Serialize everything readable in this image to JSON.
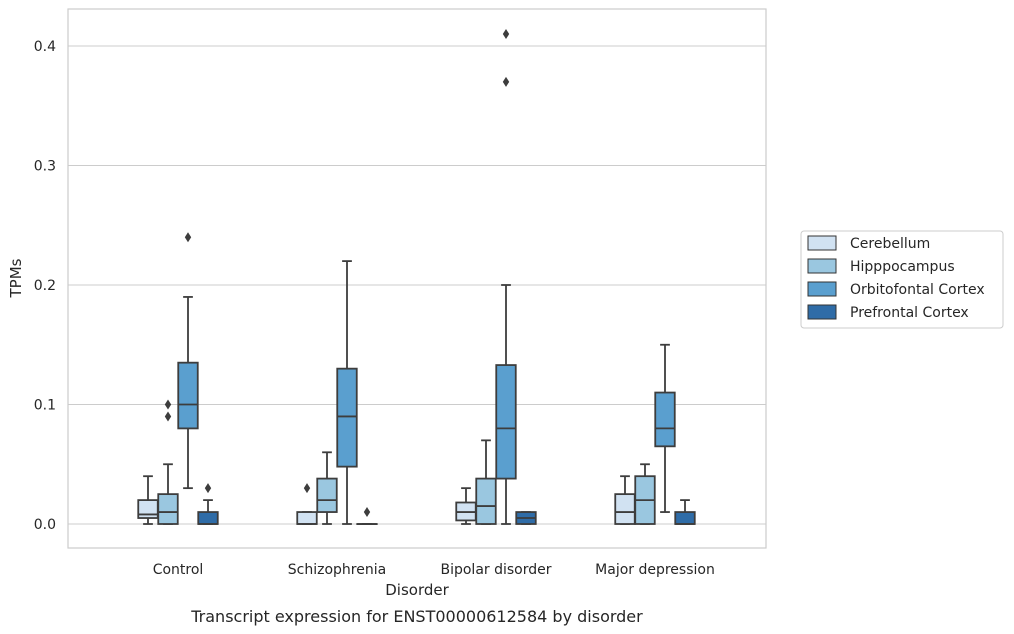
{
  "chart_data": {
    "type": "box",
    "title": "Transcript expression for ENST00000612584 by disorder",
    "xlabel": "Disorder",
    "ylabel": "TPMs",
    "ylim": [
      -0.02,
      0.43
    ],
    "yticks": [
      "0.0",
      "0.1",
      "0.2",
      "0.3",
      "0.4"
    ],
    "ytick_values": [
      0.0,
      0.1,
      0.2,
      0.3,
      0.4
    ],
    "grid": "horizontal",
    "legend_position": "right",
    "categories": [
      "Control",
      "Schizophrenia",
      "Bipolar disorder",
      "Major depression"
    ],
    "series": [
      {
        "name": "Cerebellum",
        "color": "#d1e2f2",
        "boxes": [
          {
            "whislo": 0.0,
            "q1": 0.005,
            "med": 0.008,
            "q3": 0.02,
            "whishi": 0.04,
            "fliers": []
          },
          {
            "whislo": 0.0,
            "q1": 0.0,
            "med": 0.0,
            "q3": 0.01,
            "whishi": 0.01,
            "fliers": [
              0.03
            ]
          },
          {
            "whislo": 0.0,
            "q1": 0.003,
            "med": 0.01,
            "q3": 0.018,
            "whishi": 0.03,
            "fliers": []
          },
          {
            "whislo": 0.0,
            "q1": 0.0,
            "med": 0.01,
            "q3": 0.025,
            "whishi": 0.04,
            "fliers": []
          }
        ]
      },
      {
        "name": "Hipppocampus",
        "color": "#9ac7e0",
        "boxes": [
          {
            "whislo": 0.0,
            "q1": 0.0,
            "med": 0.01,
            "q3": 0.025,
            "whishi": 0.05,
            "fliers": [
              0.09,
              0.1
            ]
          },
          {
            "whislo": 0.0,
            "q1": 0.01,
            "med": 0.02,
            "q3": 0.038,
            "whishi": 0.06,
            "fliers": []
          },
          {
            "whislo": 0.0,
            "q1": 0.0,
            "med": 0.015,
            "q3": 0.038,
            "whishi": 0.07,
            "fliers": []
          },
          {
            "whislo": 0.0,
            "q1": 0.0,
            "med": 0.02,
            "q3": 0.04,
            "whishi": 0.05,
            "fliers": []
          }
        ]
      },
      {
        "name": "Orbitofontal Cortex",
        "color": "#5a9fcf",
        "boxes": [
          {
            "whislo": 0.03,
            "q1": 0.08,
            "med": 0.1,
            "q3": 0.135,
            "whishi": 0.19,
            "fliers": [
              0.24
            ]
          },
          {
            "whislo": 0.0,
            "q1": 0.048,
            "med": 0.09,
            "q3": 0.13,
            "whishi": 0.22,
            "fliers": []
          },
          {
            "whislo": 0.0,
            "q1": 0.038,
            "med": 0.08,
            "q3": 0.133,
            "whishi": 0.2,
            "fliers": [
              0.37,
              0.41
            ]
          },
          {
            "whislo": 0.01,
            "q1": 0.065,
            "med": 0.08,
            "q3": 0.11,
            "whishi": 0.15,
            "fliers": []
          }
        ]
      },
      {
        "name": "Prefrontal Cortex",
        "color": "#2f6ca7",
        "boxes": [
          {
            "whislo": 0.0,
            "q1": 0.0,
            "med": 0.0,
            "q3": 0.01,
            "whishi": 0.02,
            "fliers": [
              0.03
            ]
          },
          {
            "whislo": 0.0,
            "q1": 0.0,
            "med": 0.0,
            "q3": 0.0,
            "whishi": 0.0,
            "fliers": [
              0.01
            ]
          },
          {
            "whislo": 0.0,
            "q1": 0.0,
            "med": 0.005,
            "q3": 0.01,
            "whishi": 0.01,
            "fliers": []
          },
          {
            "whislo": 0.0,
            "q1": 0.0,
            "med": 0.0,
            "q3": 0.01,
            "whishi": 0.02,
            "fliers": []
          }
        ]
      }
    ]
  }
}
